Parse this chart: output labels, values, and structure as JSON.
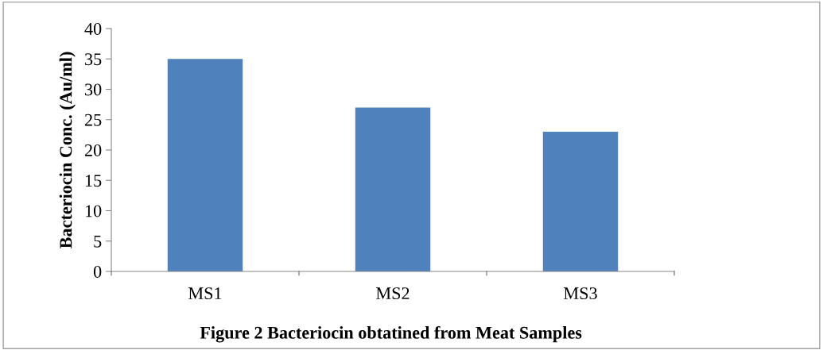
{
  "chart_data": {
    "type": "bar",
    "title": "Figure 2 Bacteriocin obtatined from Meat Samples",
    "ylabel": "Bacteriocin Conc. (Au/ml)",
    "categories": [
      "MS1",
      "MS2",
      "MS3"
    ],
    "series": [
      {
        "color": "#4f81bd",
        "values": [
          35,
          27,
          23
        ]
      }
    ],
    "ylim": [
      0,
      40
    ],
    "yticks": [
      0,
      5,
      10,
      15,
      20,
      25,
      30,
      35,
      40
    ],
    "grid": false,
    "legend": false
  }
}
